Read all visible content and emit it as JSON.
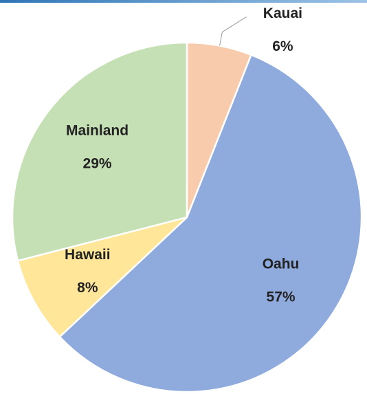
{
  "chart_data": {
    "type": "pie",
    "categories": [
      "Kauai",
      "Oahu",
      "Hawaii",
      "Mainland"
    ],
    "values": [
      6,
      57,
      8,
      29
    ],
    "value_labels": [
      "6%",
      "57%",
      "8%",
      "29%"
    ],
    "colors": [
      "#f8cbad",
      "#8faadc",
      "#ffe699",
      "#c5e0b4"
    ]
  }
}
